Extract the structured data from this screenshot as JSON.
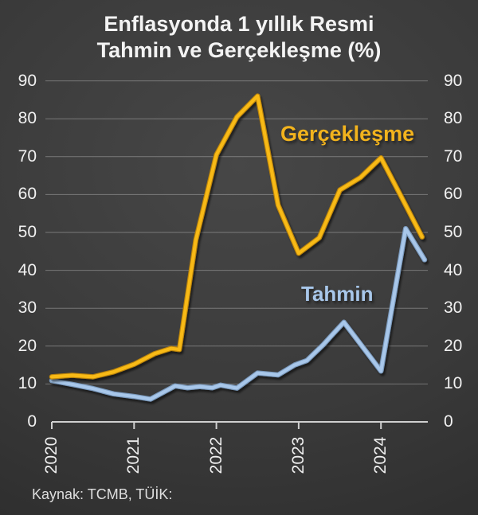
{
  "title": {
    "line1": "Enflasyonda 1 yıllık Resmi",
    "line2": "Tahmin ve Gerçekleşme (%)"
  },
  "source_note": "Kaynak: TCMB, TÜİK:",
  "colors": {
    "background_center": "#474747",
    "background_edge": "#272727",
    "gridline": "rgba(255,255,255,0.30)",
    "axis": "#cfcfcf",
    "tick_label": "#f1f1f1",
    "title_text": "#f3f3f3",
    "gerceklesme_line": "#f8ba18",
    "gerceklesme_edge": "#bb8408",
    "gerceklesme_label": "#f2b31d",
    "tahmin_line": "#a8c7ea",
    "tahmin_edge": "#7a99bc"
  },
  "chart_data": {
    "type": "line",
    "title": "Enflasyonda 1 yıllık Resmi Tahmin ve Gerçekleşme (%)",
    "xlabel": "",
    "ylabel": "",
    "x_range": [
      2020,
      2024.6
    ],
    "y_range": [
      0,
      90
    ],
    "grid": true,
    "legend_position": "inline-annotations",
    "yticks": [
      0,
      10,
      20,
      30,
      40,
      50,
      60,
      70,
      80,
      90
    ],
    "xticks": [
      "2020",
      "2021",
      "2022",
      "2023",
      "2024"
    ],
    "series": [
      {
        "name": "Tahmin",
        "color": "#a8c7ea",
        "points": [
          [
            2020.0,
            10.9
          ],
          [
            2020.25,
            9.9
          ],
          [
            2020.5,
            8.8
          ],
          [
            2020.75,
            7.4
          ],
          [
            2021.0,
            6.7
          ],
          [
            2021.2,
            6.0
          ],
          [
            2021.5,
            9.5
          ],
          [
            2021.65,
            9.0
          ],
          [
            2021.8,
            9.3
          ],
          [
            2021.95,
            9.0
          ],
          [
            2022.05,
            9.7
          ],
          [
            2022.25,
            8.9
          ],
          [
            2022.5,
            12.9
          ],
          [
            2022.75,
            12.4
          ],
          [
            2022.95,
            15.0
          ],
          [
            2023.1,
            16.2
          ],
          [
            2023.3,
            20.4
          ],
          [
            2023.4,
            22.8
          ],
          [
            2023.55,
            26.3
          ],
          [
            2024.0,
            13.4
          ],
          [
            2024.3,
            51.0
          ],
          [
            2024.53,
            42.8
          ]
        ]
      },
      {
        "name": "Gerçekleşme",
        "color": "#f8ba18",
        "points": [
          [
            2020.0,
            11.9
          ],
          [
            2020.25,
            12.3
          ],
          [
            2020.5,
            11.9
          ],
          [
            2020.75,
            13.2
          ],
          [
            2021.0,
            15.2
          ],
          [
            2021.25,
            18.0
          ],
          [
            2021.45,
            19.4
          ],
          [
            2021.55,
            19.1
          ],
          [
            2021.75,
            48.0
          ],
          [
            2022.0,
            70.5
          ],
          [
            2022.25,
            80.5
          ],
          [
            2022.5,
            86.0
          ],
          [
            2022.75,
            57.2
          ],
          [
            2023.0,
            44.5
          ],
          [
            2023.25,
            48.6
          ],
          [
            2023.5,
            61.2
          ],
          [
            2023.75,
            64.5
          ],
          [
            2024.0,
            69.7
          ],
          [
            2024.25,
            59.3
          ],
          [
            2024.5,
            48.8
          ]
        ]
      }
    ]
  }
}
